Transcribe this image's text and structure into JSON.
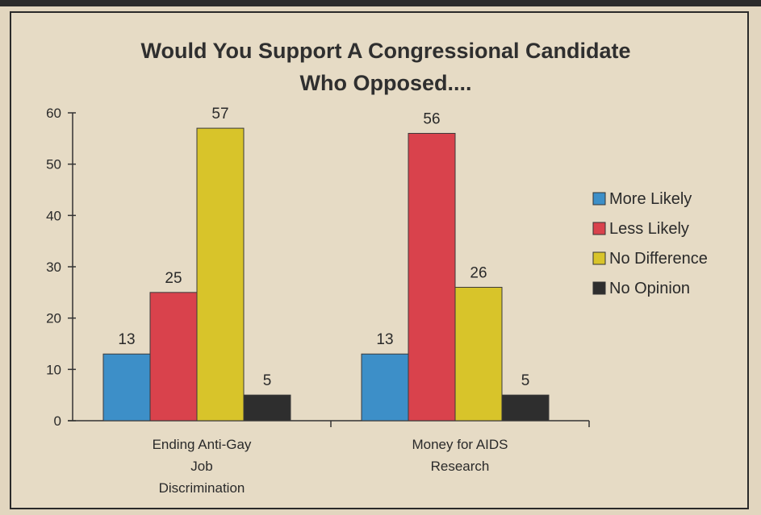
{
  "chart_data": {
    "type": "bar",
    "title": [
      "Would You Support A Congressional Candidate",
      "Who Opposed...."
    ],
    "categories": [
      [
        "Ending Anti-Gay",
        "Job",
        "Discrimination"
      ],
      [
        "Money for AIDS",
        "Research"
      ]
    ],
    "series": [
      {
        "name": "More Likely",
        "color": "#3d8fc8",
        "values": [
          13,
          13
        ]
      },
      {
        "name": "Less Likely",
        "color": "#d9424c",
        "values": [
          25,
          56
        ]
      },
      {
        "name": "No Difference",
        "color": "#d8c42a",
        "values": [
          57,
          26
        ]
      },
      {
        "name": "No Opinion",
        "color": "#2e2e2e",
        "values": [
          5,
          5
        ]
      }
    ],
    "ylim": [
      0,
      60
    ],
    "yticks": [
      0,
      10,
      20,
      30,
      40,
      50,
      60
    ],
    "legend_position": "right",
    "grid": false
  }
}
